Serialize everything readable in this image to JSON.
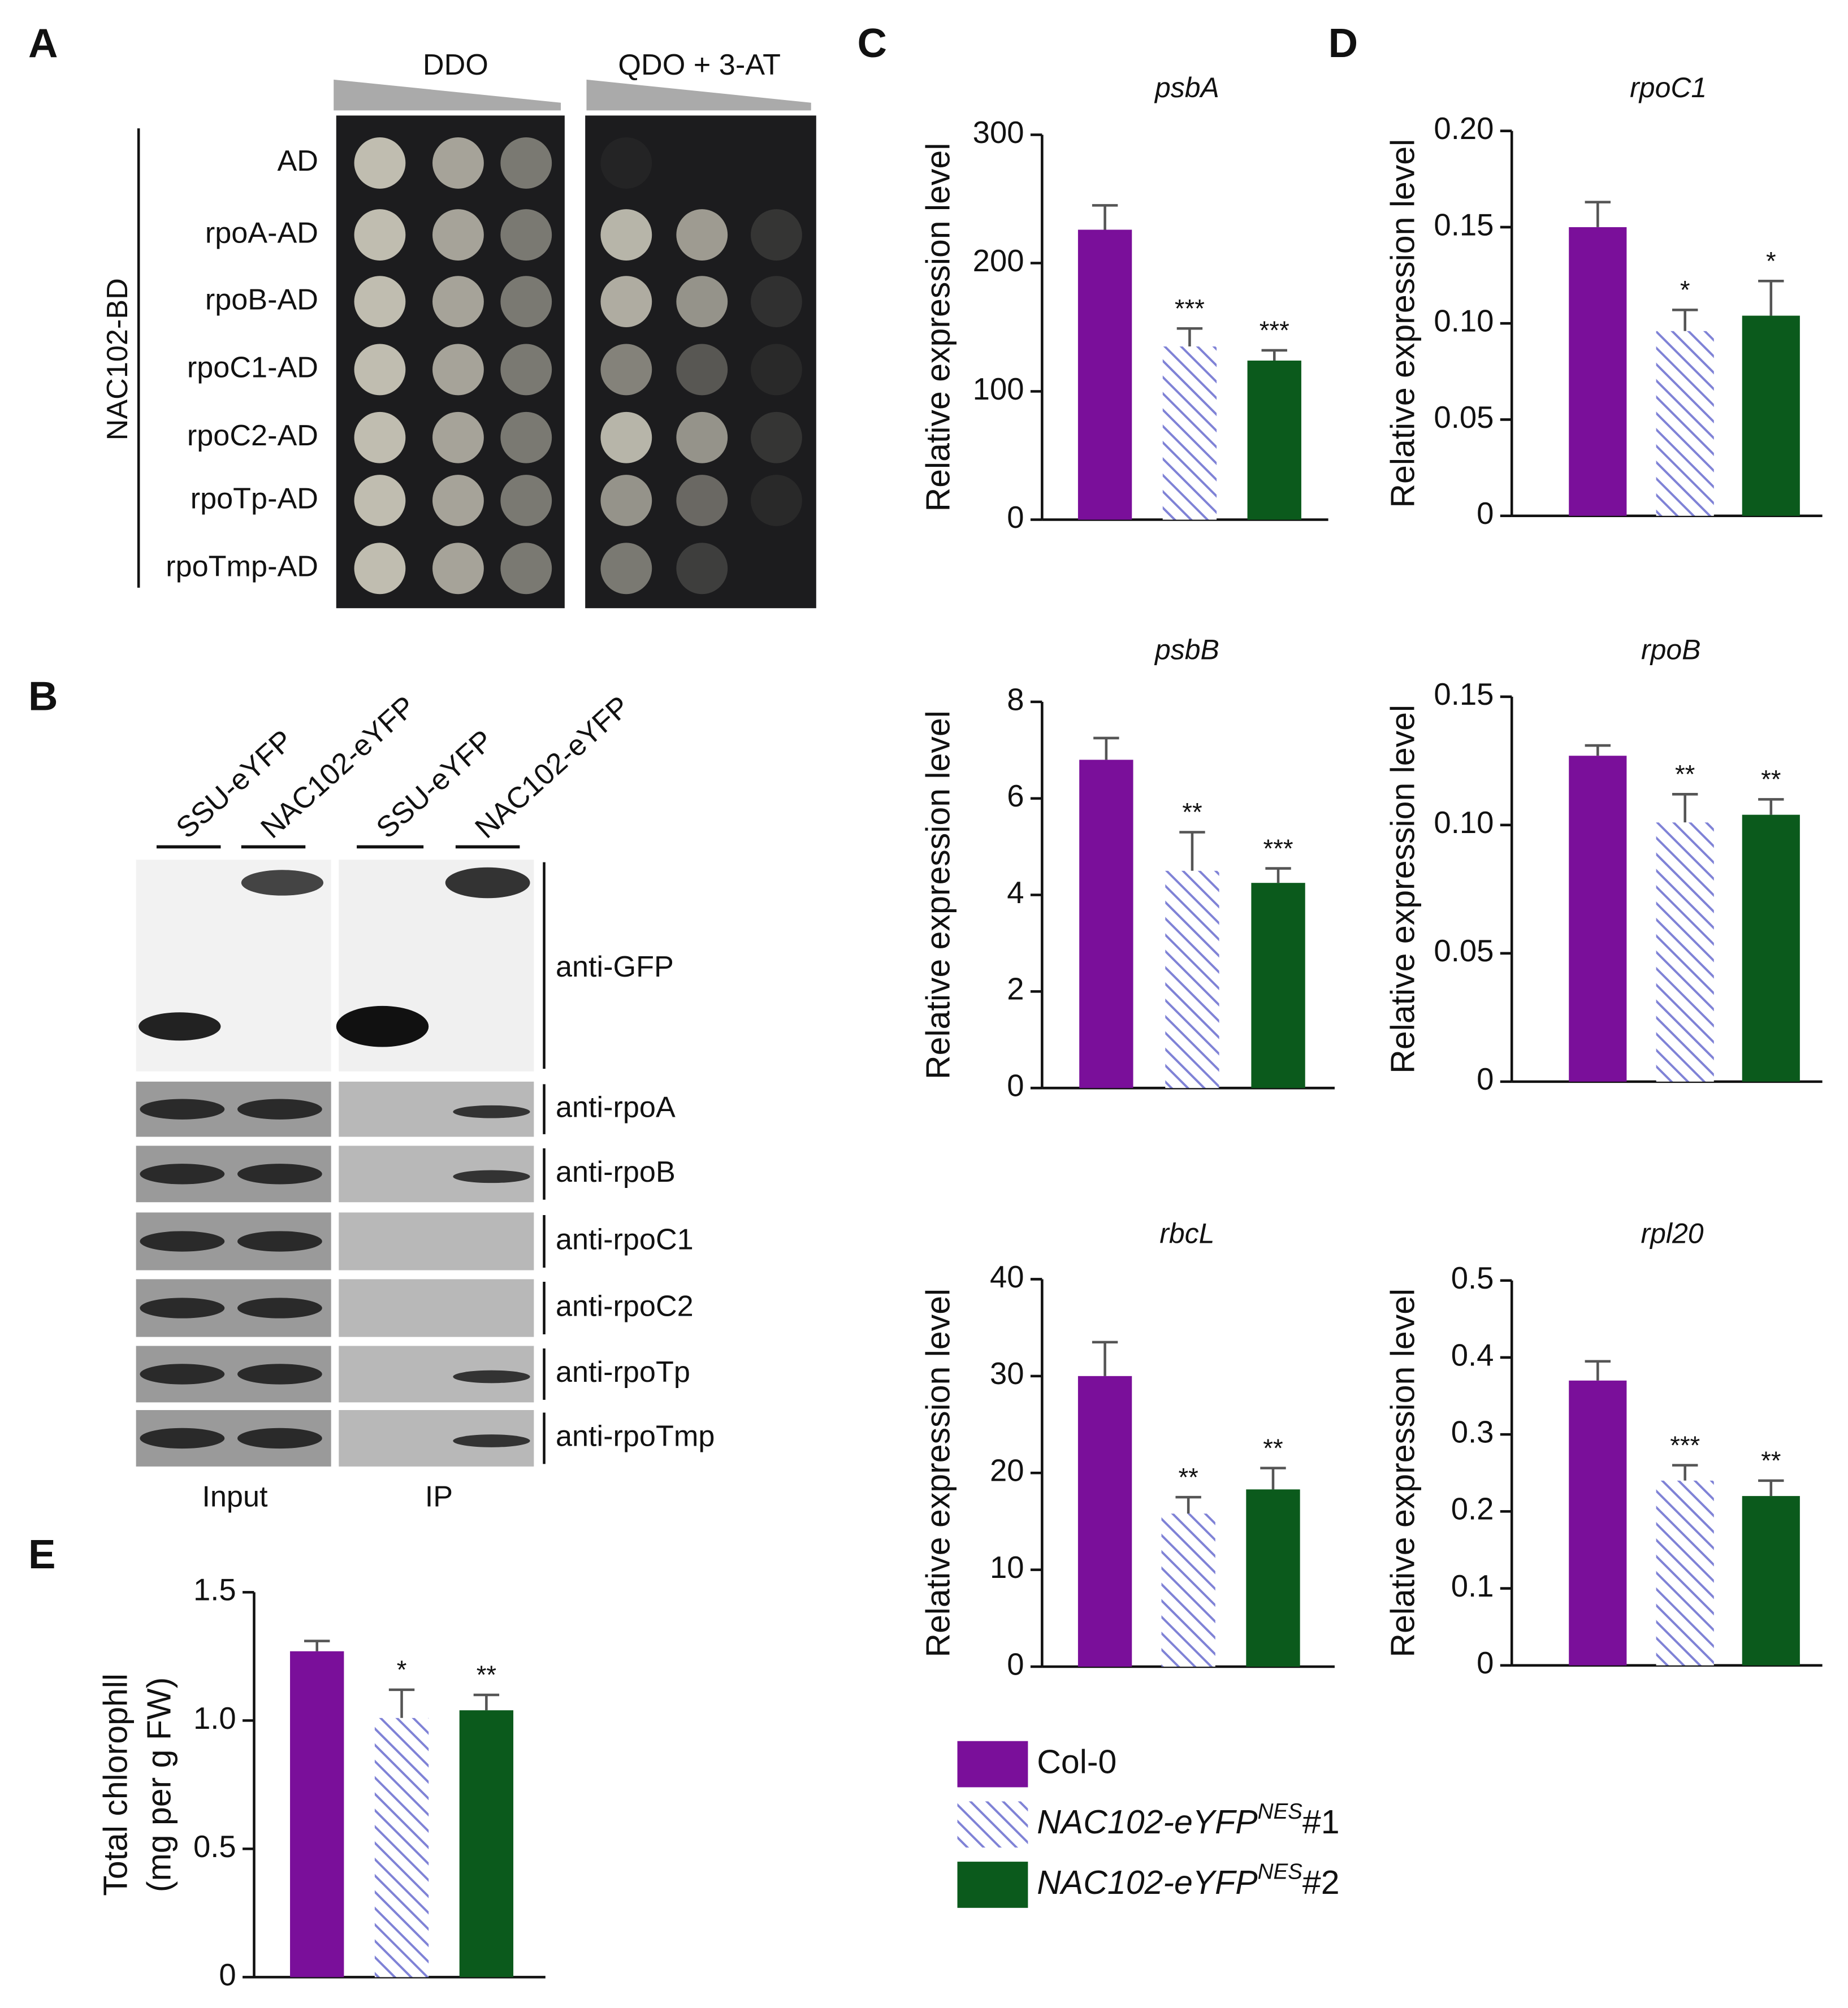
{
  "panels": {
    "a": "A",
    "b": "B",
    "c": "C",
    "d": "D",
    "e": "E"
  },
  "yeast": {
    "media": [
      "DDO",
      "QDO  + 3-AT"
    ],
    "bait": "NAC102-BD",
    "preys": [
      "AD",
      "rpoA-AD",
      "rpoB-AD",
      "rpoC1-AD",
      "rpoC2-AD",
      "rpoTp-AD",
      "rpoTmp-AD"
    ]
  },
  "blot": {
    "lanes": [
      "SSU-eYFP",
      "NAC102-eYFP",
      "SSU-eYFP",
      "NAC102-eYFP"
    ],
    "antibodies": [
      "anti-GFP",
      "anti-rpoA",
      "anti-rpoB",
      "anti-rpoC1",
      "anti-rpoC2",
      "anti-rpoTp",
      "anti-rpoTmp"
    ],
    "groups": [
      "Input",
      "IP"
    ]
  },
  "legend": [
    {
      "name": "Col-0",
      "color": "#7a0f9a"
    },
    {
      "name": "NAC102-eYFP",
      "superscript": "NES",
      "suffix": "#1",
      "color": "#7f82d6",
      "pattern": "hatch"
    },
    {
      "name": "NAC102-eYFP",
      "superscript": "NES",
      "suffix": "#2",
      "color": "#0b5a1c"
    }
  ],
  "chart_data": [
    {
      "type": "bar",
      "title": "psbA",
      "ylabel": "Relative expression level",
      "ylim": [
        0,
        300
      ],
      "yticks": [
        0,
        100,
        200,
        300
      ],
      "values": [
        226,
        135,
        124
      ],
      "errors": [
        19,
        14,
        8
      ],
      "significance": [
        null,
        "***",
        "***"
      ]
    },
    {
      "type": "bar",
      "title": "rpoC1",
      "ylabel": "Relative expression level",
      "ylim": [
        0,
        0.2
      ],
      "yticks": [
        0,
        0.05,
        {
          "value": 0.1,
          "label": "0.10"
        },
        0.15,
        {
          "value": 0.2,
          "label": "0.20"
        }
      ],
      "values": [
        0.15,
        0.096,
        0.104
      ],
      "errors": [
        0.013,
        0.011,
        0.018
      ],
      "significance": [
        null,
        "*",
        "*"
      ]
    },
    {
      "type": "bar",
      "title": "psbB",
      "ylabel": "Relative expression level",
      "ylim": [
        0,
        8
      ],
      "yticks": [
        0,
        2,
        4,
        6,
        8
      ],
      "values": [
        6.8,
        4.5,
        4.25
      ],
      "errors": [
        0.45,
        0.8,
        0.3
      ],
      "significance": [
        null,
        "**",
        "***"
      ]
    },
    {
      "type": "bar",
      "title": "rpoB",
      "ylabel": "Relative expression level",
      "ylim": [
        0,
        0.15
      ],
      "yticks": [
        0,
        0.05,
        {
          "value": 0.1,
          "label": "0.10"
        },
        0.15
      ],
      "values": [
        0.127,
        0.101,
        0.104
      ],
      "errors": [
        0.004,
        0.011,
        0.006
      ],
      "significance": [
        null,
        "**",
        "**"
      ]
    },
    {
      "type": "bar",
      "title": "rbcL",
      "ylabel": "Relative expression level",
      "ylim": [
        0,
        40
      ],
      "yticks": [
        0,
        10,
        20,
        30,
        40
      ],
      "values": [
        30,
        15.8,
        18.3
      ],
      "errors": [
        3.5,
        1.7,
        2.2
      ],
      "significance": [
        null,
        "**",
        "**"
      ]
    },
    {
      "type": "bar",
      "title": "rpl20",
      "ylabel": "Relative expression level",
      "ylim": [
        0,
        0.5
      ],
      "yticks": [
        0,
        0.1,
        0.2,
        0.3,
        0.4,
        0.5
      ],
      "values": [
        0.37,
        0.24,
        0.22
      ],
      "errors": [
        0.025,
        0.02,
        0.02
      ],
      "significance": [
        null,
        "***",
        "**"
      ]
    },
    {
      "type": "bar",
      "ylabel": [
        "Total chlorophll",
        "(mg per g FW)"
      ],
      "ylim": [
        0,
        1.5
      ],
      "yticks": [
        0,
        0.5,
        {
          "value": 1,
          "label": "1.0"
        },
        1.5
      ],
      "values": [
        1.27,
        1.01,
        1.04
      ],
      "errors": [
        0.04,
        0.11,
        0.06
      ],
      "significance": [
        null,
        "*",
        "**"
      ]
    }
  ]
}
